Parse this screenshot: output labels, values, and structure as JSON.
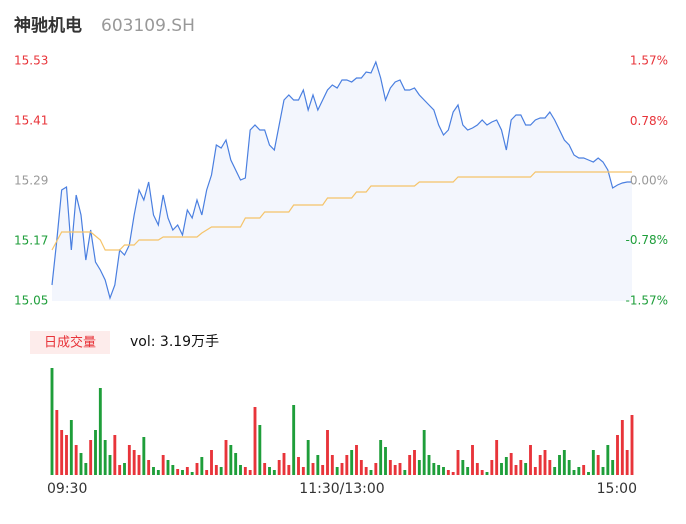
{
  "header": {
    "name": "神驰机电",
    "code": "603109.SH"
  },
  "chart_data": [
    {
      "type": "line",
      "x": [
        0,
        2,
        4,
        6,
        8,
        10,
        12,
        14,
        16,
        18,
        20,
        22,
        24,
        26,
        28,
        30,
        32,
        34,
        36,
        38,
        40,
        42,
        44,
        46,
        48,
        50,
        52,
        54,
        56,
        58,
        60,
        62,
        64,
        66,
        68,
        70,
        72,
        74,
        76,
        78,
        80,
        82,
        84,
        86,
        88,
        90,
        92,
        94,
        96,
        98,
        100,
        102,
        104,
        106,
        108,
        110,
        112,
        114,
        116,
        118,
        120,
        122,
        124,
        126,
        128,
        130,
        132,
        134,
        136,
        138,
        140,
        142,
        144,
        146,
        148,
        150,
        152,
        154,
        156,
        158,
        160,
        162,
        164,
        166,
        168,
        170,
        172,
        174,
        176,
        178,
        180,
        182,
        184,
        186,
        188,
        190,
        192,
        194,
        196,
        198,
        200,
        202,
        204,
        206,
        208,
        210,
        212,
        214,
        216,
        218,
        220,
        222,
        224,
        226,
        228,
        230,
        232,
        234,
        236,
        238,
        240
      ],
      "xlim": [
        0,
        240
      ],
      "ylim": [
        15.05,
        15.53
      ],
      "yticks": [
        15.53,
        15.41,
        15.29,
        15.17,
        15.05
      ],
      "ytick_colors": [
        "#e8343a",
        "#e8343a",
        "#999999",
        "#1e9e3a",
        "#1e9e3a"
      ],
      "y2lim": [
        -1.57,
        1.57
      ],
      "y2ticks": [
        {
          "value": 1.57,
          "label": "1.57%"
        },
        {
          "value": 0.78,
          "label": "0.78%"
        },
        {
          "value": 0,
          "label": "0.00%"
        },
        {
          "value": -0.78,
          "label": "-0.78%"
        },
        {
          "value": -1.57,
          "label": "-1.57%"
        }
      ],
      "y2tick_colors": [
        "#e8343a",
        "#e8343a",
        "#999999",
        "#1e9e3a",
        "#1e9e3a"
      ],
      "series": [
        {
          "color": "#4a7fe0",
          "area": "#f3f6fd",
          "values": [
            15.082,
            15.172,
            15.272,
            15.278,
            15.152,
            15.262,
            15.222,
            15.132,
            15.192,
            15.128,
            15.112,
            15.092,
            15.056,
            15.082,
            15.152,
            15.142,
            15.162,
            15.222,
            15.272,
            15.252,
            15.288,
            15.222,
            15.202,
            15.262,
            15.216,
            15.192,
            15.202,
            15.182,
            15.232,
            15.216,
            15.252,
            15.222,
            15.272,
            15.302,
            15.362,
            15.356,
            15.372,
            15.332,
            15.312,
            15.292,
            15.296,
            15.392,
            15.402,
            15.392,
            15.392,
            15.362,
            15.352,
            15.402,
            15.452,
            15.462,
            15.452,
            15.452,
            15.472,
            15.432,
            15.462,
            15.432,
            15.452,
            15.472,
            15.482,
            15.476,
            15.492,
            15.492,
            15.488,
            15.496,
            15.496,
            15.508,
            15.506,
            15.528,
            15.496,
            15.452,
            15.476,
            15.488,
            15.492,
            15.472,
            15.472,
            15.476,
            15.462,
            15.452,
            15.442,
            15.432,
            15.402,
            15.382,
            15.392,
            15.428,
            15.442,
            15.402,
            15.392,
            15.396,
            15.402,
            15.412,
            15.402,
            15.408,
            15.412,
            15.392,
            15.352,
            15.412,
            15.422,
            15.422,
            15.402,
            15.402,
            15.412,
            15.416,
            15.416,
            15.428,
            15.412,
            15.392,
            15.372,
            15.362,
            15.342,
            15.336,
            15.336,
            15.332,
            15.328,
            15.336,
            15.328,
            15.312,
            15.276,
            15.282,
            15.286,
            15.288,
            15.288
          ]
        },
        {
          "color": "#f5c46a",
          "values": [
            15.152,
            15.17,
            15.188,
            15.188,
            15.188,
            15.188,
            15.188,
            15.188,
            15.188,
            15.18,
            15.172,
            15.152,
            15.152,
            15.152,
            15.152,
            15.162,
            15.162,
            15.162,
            15.172,
            15.172,
            15.172,
            15.172,
            15.172,
            15.178,
            15.178,
            15.178,
            15.178,
            15.178,
            15.178,
            15.178,
            15.178,
            15.186,
            15.192,
            15.198,
            15.198,
            15.198,
            15.198,
            15.198,
            15.198,
            15.198,
            15.216,
            15.216,
            15.216,
            15.216,
            15.228,
            15.228,
            15.228,
            15.228,
            15.228,
            15.228,
            15.242,
            15.242,
            15.242,
            15.242,
            15.242,
            15.242,
            15.242,
            15.256,
            15.256,
            15.256,
            15.256,
            15.256,
            15.256,
            15.268,
            15.268,
            15.268,
            15.28,
            15.28,
            15.28,
            15.28,
            15.28,
            15.28,
            15.28,
            15.28,
            15.28,
            15.28,
            15.288,
            15.288,
            15.288,
            15.288,
            15.288,
            15.288,
            15.288,
            15.288,
            15.298,
            15.298,
            15.298,
            15.298,
            15.298,
            15.298,
            15.298,
            15.298,
            15.298,
            15.298,
            15.298,
            15.298,
            15.298,
            15.298,
            15.298,
            15.298,
            15.308,
            15.308,
            15.308,
            15.308,
            15.308,
            15.308,
            15.308,
            15.308,
            15.308,
            15.308,
            15.308,
            15.308,
            15.308,
            15.308,
            15.308,
            15.308,
            15.308,
            15.308,
            15.308,
            15.308,
            15.308
          ]
        }
      ]
    },
    {
      "type": "bar",
      "legend": "日成交量",
      "summary": "vol: 3.19万手",
      "xlim": [
        0,
        240
      ],
      "xticks": [
        {
          "value": 0,
          "label": "09:30"
        },
        {
          "value": 120,
          "label": "11:30/13:00"
        },
        {
          "value": 240,
          "label": "15:00"
        }
      ],
      "ylim": [
        0,
        1100
      ],
      "up_color": "#e8343a",
      "down_color": "#1e9e3a",
      "values": [
        1070,
        650,
        450,
        400,
        550,
        300,
        220,
        120,
        350,
        450,
        870,
        350,
        200,
        400,
        100,
        120,
        300,
        250,
        200,
        380,
        150,
        80,
        50,
        200,
        150,
        100,
        60,
        50,
        80,
        30,
        120,
        180,
        50,
        250,
        100,
        80,
        350,
        300,
        220,
        100,
        80,
        50,
        680,
        500,
        120,
        80,
        50,
        150,
        220,
        100,
        700,
        180,
        80,
        350,
        120,
        200,
        100,
        450,
        200,
        80,
        120,
        200,
        250,
        300,
        150,
        80,
        50,
        120,
        350,
        280,
        150,
        100,
        120,
        50,
        200,
        250,
        150,
        450,
        200,
        120,
        100,
        80,
        50,
        30,
        250,
        150,
        80,
        300,
        120,
        50,
        30,
        150,
        350,
        120,
        180,
        220,
        100,
        150,
        120,
        300,
        80,
        200,
        250,
        150,
        80,
        200,
        250,
        150,
        50,
        80,
        100,
        30,
        250,
        200,
        80,
        300,
        150,
        400,
        550,
        250,
        600
      ]
    }
  ]
}
